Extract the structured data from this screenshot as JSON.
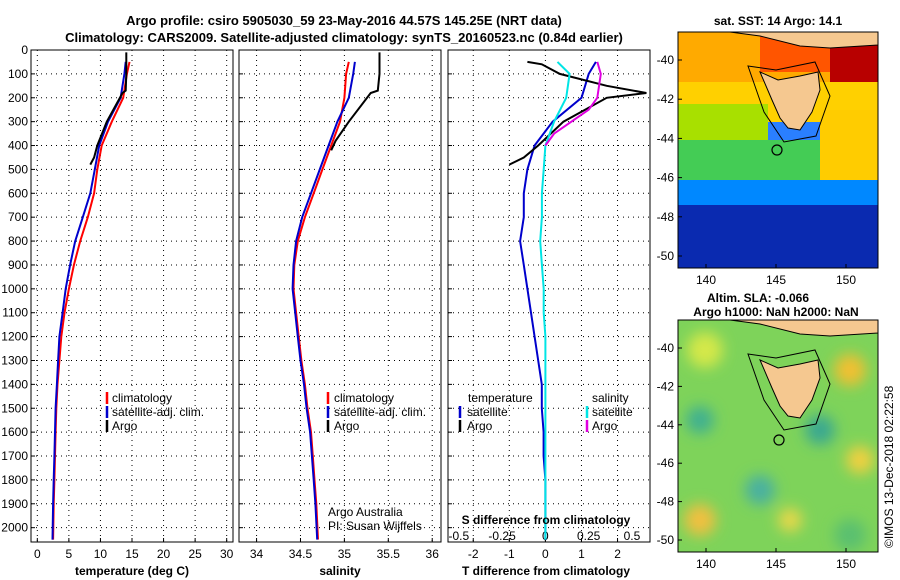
{
  "title": {
    "line1": "Argo profile: csiro 5905030_59 23-May-2016 44.57S 145.25E (NRT data)",
    "line2": "Climatology: CARS2009. Satellite-adjusted climatology: synTS_20160523.nc (0.84d earlier)"
  },
  "colors": {
    "climatology": "#ff0000",
    "satellite": "#0000cc",
    "argo": "#000000",
    "sat_salinity": "#00e5e5",
    "argo_salinity": "#e000e0"
  },
  "depth_ticks": [
    0,
    100,
    200,
    300,
    400,
    500,
    600,
    700,
    800,
    900,
    1000,
    1100,
    1200,
    1300,
    1400,
    1500,
    1600,
    1700,
    1800,
    1900,
    2000
  ],
  "panels": {
    "temperature": {
      "xlabel": "temperature (deg C)",
      "xticks": [
        "0",
        "5",
        "10",
        "15",
        "20",
        "25",
        "30"
      ],
      "legend": [
        "climatology",
        "satellite-adj. clim.",
        "Argo"
      ]
    },
    "salinity": {
      "xlabel": "salinity",
      "xticks": [
        "34",
        "34.5",
        "35",
        "35.5",
        "36"
      ],
      "legend": [
        "climatology",
        "satellite-adj. clim.",
        "Argo"
      ],
      "note1": "Argo Australia",
      "note2": "PI: Susan Wijffels"
    },
    "difference": {
      "xlabel": "T difference from climatology",
      "xticks": [
        "-2",
        "-1",
        "0",
        "1",
        "2"
      ],
      "s_label": "S difference from climatology",
      "s_ticks": [
        "-0.5",
        "-0.25",
        "0",
        "0.25",
        "0.5"
      ],
      "legend_t_title": "temperature",
      "legend_s_title": "salinity",
      "legend_t": [
        "satellite",
        "Argo"
      ],
      "legend_s": [
        "satellite",
        "Argo"
      ]
    },
    "sst_map": {
      "title": "sat. SST: 14 Argo: 14.1",
      "yticks": [
        "-40",
        "-42",
        "-44",
        "-46",
        "-48",
        "-50"
      ],
      "xticks": [
        "140",
        "145",
        "150"
      ]
    },
    "sla_map": {
      "title1": "Altim. SLA: -0.066",
      "title2": "Argo h1000: NaN h2000: NaN",
      "yticks": [
        "-40",
        "-42",
        "-44",
        "-46",
        "-48",
        "-50"
      ],
      "xticks": [
        "140",
        "145",
        "150"
      ]
    },
    "credit": "©IMOS 13-Dec-2018 02:22:58"
  },
  "chart_data": [
    {
      "type": "line",
      "title": "",
      "xlabel": "temperature (deg C)",
      "ylabel": "",
      "xlim": [
        -1,
        31
      ],
      "ylim": [
        2060,
        0
      ],
      "series": [
        {
          "name": "climatology",
          "x": [
            14.6,
            14.2,
            13.6,
            11.8,
            10.2,
            9.5,
            9.0,
            8.0,
            6.8,
            5.8,
            5.0,
            4.3,
            3.8,
            3.5,
            3.2,
            3.0,
            2.9,
            2.8,
            2.7,
            2.6,
            2.5
          ],
          "y": [
            50,
            100,
            200,
            300,
            400,
            500,
            600,
            700,
            800,
            900,
            1000,
            1100,
            1200,
            1300,
            1400,
            1500,
            1600,
            1700,
            1800,
            1900,
            2050
          ]
        },
        {
          "name": "satellite-adj. clim.",
          "x": [
            14.0,
            13.8,
            13.2,
            11.2,
            9.8,
            9.1,
            8.4,
            7.2,
            6.0,
            5.2,
            4.5,
            4.0,
            3.5,
            3.3,
            3.1,
            2.9,
            2.8,
            2.7,
            2.6,
            2.5,
            2.4
          ],
          "y": [
            50,
            100,
            200,
            300,
            400,
            500,
            600,
            700,
            800,
            900,
            1000,
            1100,
            1200,
            1300,
            1400,
            1500,
            1600,
            1700,
            1800,
            1900,
            2050
          ]
        },
        {
          "name": "Argo",
          "x": [
            14.1,
            14.1,
            14.0,
            13.5,
            11.0,
            9.5,
            9.0,
            8.4
          ],
          "y": [
            10,
            100,
            170,
            180,
            300,
            400,
            450,
            480
          ]
        }
      ]
    },
    {
      "type": "line",
      "title": "",
      "xlabel": "salinity",
      "ylabel": "",
      "xlim": [
        33.8,
        36.1
      ],
      "ylim": [
        2060,
        0
      ],
      "series": [
        {
          "name": "climatology",
          "x": [
            35.05,
            35.02,
            35.0,
            34.95,
            34.85,
            34.75,
            34.65,
            34.55,
            34.47,
            34.43,
            34.42,
            34.45,
            34.48,
            34.51,
            34.55,
            34.58,
            34.62,
            34.64,
            34.66,
            34.68,
            34.7
          ],
          "y": [
            50,
            100,
            200,
            300,
            400,
            500,
            600,
            700,
            800,
            900,
            1000,
            1100,
            1200,
            1300,
            1400,
            1500,
            1600,
            1700,
            1800,
            1900,
            2050
          ]
        },
        {
          "name": "satellite-adj. clim.",
          "x": [
            35.12,
            35.1,
            35.05,
            34.92,
            34.82,
            34.72,
            34.62,
            34.52,
            34.45,
            34.42,
            34.41,
            34.44,
            34.47,
            34.5,
            34.54,
            34.57,
            34.61,
            34.63,
            34.65,
            34.67,
            34.69
          ],
          "y": [
            50,
            100,
            200,
            300,
            400,
            500,
            600,
            700,
            800,
            900,
            1000,
            1100,
            1200,
            1300,
            1400,
            1500,
            1600,
            1700,
            1800,
            1900,
            2050
          ]
        },
        {
          "name": "Argo",
          "x": [
            35.4,
            35.4,
            35.38,
            35.3,
            35.05,
            34.9,
            34.85
          ],
          "y": [
            10,
            100,
            170,
            180,
            300,
            380,
            420
          ]
        }
      ]
    },
    {
      "type": "line",
      "title": "",
      "xlabel": "T difference from climatology",
      "ylabel": "",
      "xlim": [
        -2.7,
        2.9
      ],
      "ylim": [
        2060,
        0
      ],
      "series": [
        {
          "name": "temperature satellite",
          "x": [
            1.4,
            1.2,
            1.0,
            0.2,
            -0.3,
            -0.5,
            -0.6,
            -0.6,
            -0.7,
            -0.6,
            -0.5,
            -0.4,
            -0.3,
            -0.2,
            -0.1,
            -0.1,
            -0.05,
            -0.05,
            0,
            0,
            0
          ],
          "y": [
            50,
            100,
            200,
            300,
            400,
            500,
            600,
            700,
            800,
            900,
            1000,
            1100,
            1200,
            1300,
            1400,
            1500,
            1600,
            1700,
            1800,
            1900,
            2050
          ]
        },
        {
          "name": "temperature Argo",
          "x": [
            -0.5,
            -0.1,
            0.4,
            1.7,
            2.8,
            1.7,
            0.5,
            -0.2,
            -0.6,
            -1.0
          ],
          "y": [
            50,
            60,
            100,
            150,
            180,
            200,
            300,
            400,
            450,
            480
          ]
        },
        {
          "name": "salinity satellite",
          "x": [
            0.07,
            0.14,
            0.12,
            0.05,
            0.0,
            -0.01,
            -0.02,
            -0.02,
            -0.03,
            -0.02,
            -0.01,
            -0.01,
            0,
            0,
            0,
            0,
            0,
            0,
            0,
            0,
            0
          ],
          "y": [
            50,
            100,
            200,
            300,
            400,
            500,
            600,
            700,
            800,
            900,
            1000,
            1100,
            1200,
            1300,
            1400,
            1500,
            1600,
            1700,
            1800,
            1900,
            2050
          ]
        },
        {
          "name": "salinity Argo",
          "x": [
            0.3,
            0.32,
            0.3,
            0.25,
            0.05,
            0.0
          ],
          "y": [
            50,
            100,
            200,
            250,
            350,
            400
          ]
        }
      ]
    }
  ]
}
